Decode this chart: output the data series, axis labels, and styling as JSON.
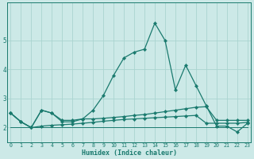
{
  "xlabel": "Humidex (Indice chaleur)",
  "background_color": "#cce9e7",
  "grid_color": "#aad4d0",
  "line_color": "#1a7a6e",
  "x": [
    0,
    1,
    2,
    3,
    4,
    5,
    6,
    7,
    8,
    9,
    10,
    11,
    12,
    13,
    14,
    15,
    16,
    17,
    18,
    19,
    20,
    21,
    22,
    23
  ],
  "series": [
    [
      2.5,
      2.2,
      2.0,
      2.6,
      2.5,
      2.2,
      2.2,
      2.3,
      2.6,
      3.1,
      3.8,
      4.4,
      4.6,
      4.7,
      5.6,
      5.0,
      3.3,
      4.15,
      3.45,
      2.75,
      2.05,
      2.05,
      1.85,
      2.15
    ],
    [
      2.5,
      2.2,
      2.0,
      2.6,
      2.5,
      2.25,
      2.25,
      2.3,
      2.3,
      2.32,
      2.35,
      2.38,
      2.42,
      2.45,
      2.5,
      2.55,
      2.6,
      2.65,
      2.7,
      2.72,
      2.25,
      2.25,
      2.25,
      2.25
    ],
    [
      2.5,
      2.2,
      2.0,
      2.05,
      2.08,
      2.1,
      2.12,
      2.15,
      2.18,
      2.22,
      2.25,
      2.28,
      2.3,
      2.32,
      2.34,
      2.36,
      2.38,
      2.4,
      2.42,
      2.15,
      2.15,
      2.15,
      2.15,
      2.18
    ],
    [
      2.0,
      2.0,
      2.0,
      2.0,
      2.0,
      2.0,
      2.0,
      2.0,
      2.0,
      2.0,
      2.0,
      2.0,
      2.0,
      2.0,
      2.0,
      2.0,
      2.0,
      2.0,
      2.0,
      2.0,
      2.0,
      2.0,
      2.0,
      2.0
    ]
  ],
  "ylim": [
    1.5,
    6.3
  ],
  "yticks": [
    2,
    3,
    4,
    5
  ],
  "xtick_labels": [
    "0",
    "1",
    "2",
    "3",
    "4",
    "5",
    "6",
    "7",
    "8",
    "9",
    "10",
    "11",
    "12",
    "13",
    "14",
    "15",
    "16",
    "17",
    "18",
    "19",
    "20",
    "21",
    "22",
    "23"
  ],
  "xlim": [
    -0.3,
    23.3
  ],
  "marker": "D",
  "markersize": 2.2,
  "linewidth": 0.9
}
